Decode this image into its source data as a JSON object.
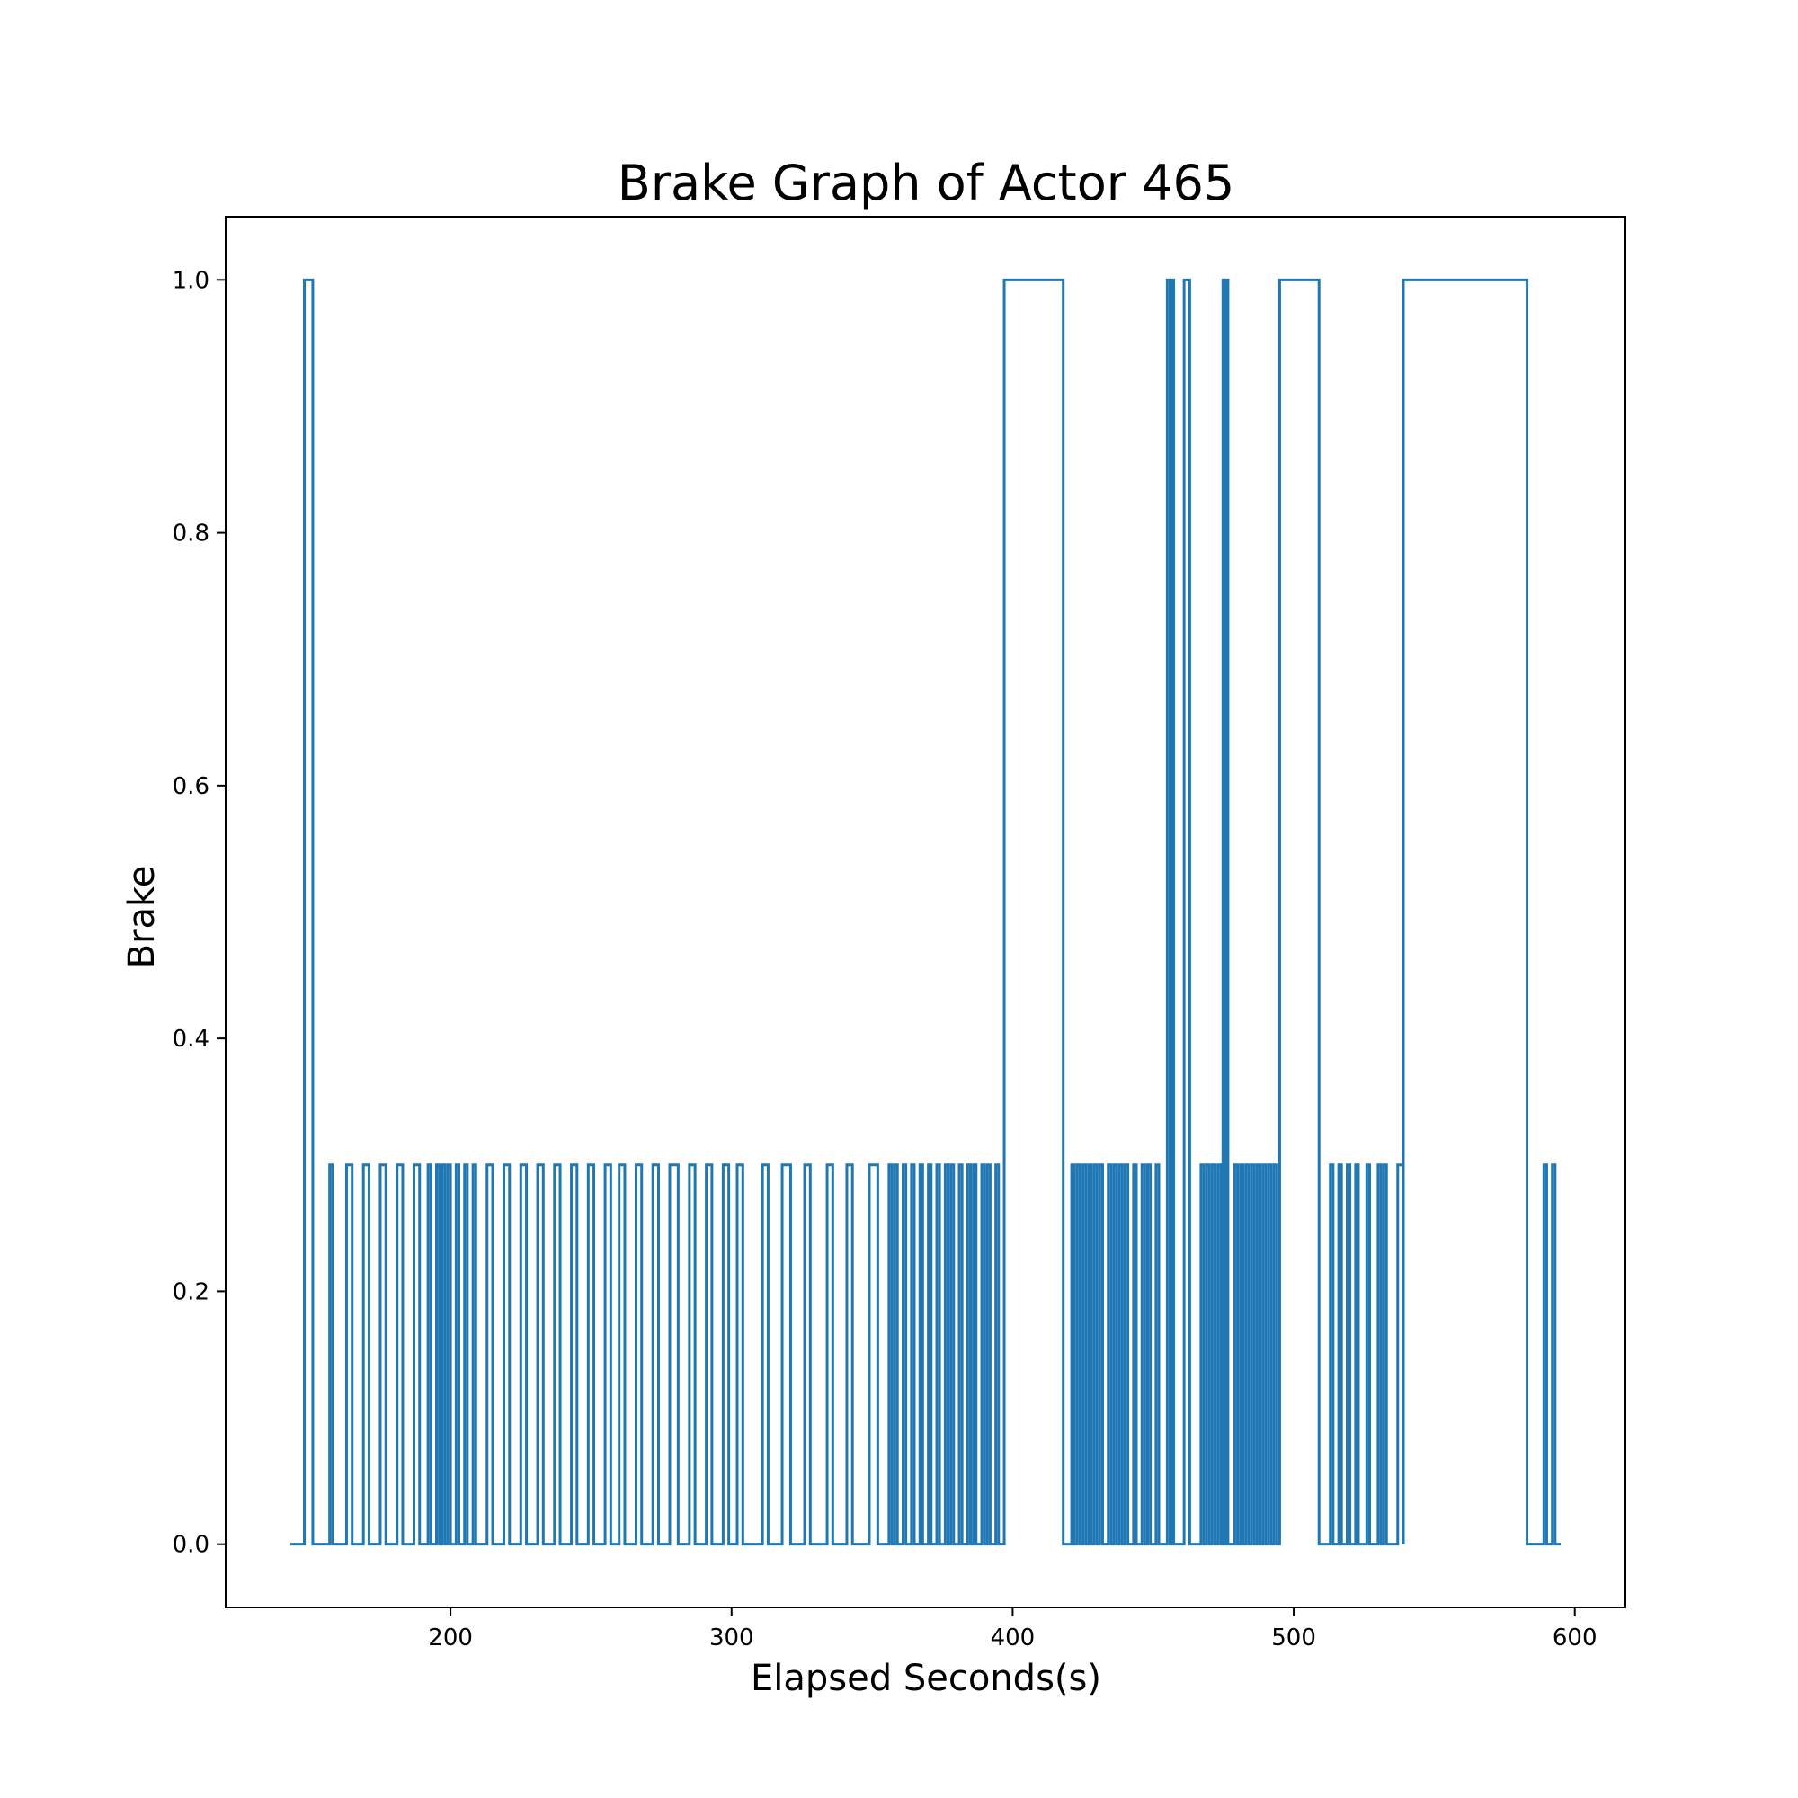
{
  "chart_data": {
    "type": "line",
    "step": true,
    "title": "Brake Graph of Actor 465",
    "xlabel": "Elapsed Seconds(s)",
    "ylabel": "Brake",
    "xlim": [
      120,
      618
    ],
    "ylim": [
      -0.05,
      1.05
    ],
    "xticks": [
      200,
      300,
      400,
      500,
      600
    ],
    "yticks": [
      0.0,
      0.2,
      0.4,
      0.6,
      0.8,
      1.0
    ],
    "xtick_labels": [
      "200",
      "300",
      "400",
      "500",
      "600"
    ],
    "ytick_labels": [
      "0.0",
      "0.2",
      "0.4",
      "0.6",
      "0.8",
      "1.0"
    ],
    "grid": false,
    "series": [
      {
        "name": "brake",
        "color": "#1f77b4",
        "start_x": 143,
        "end_x": 595,
        "base_value": 0,
        "pulses": [
          [
            148,
            151,
            1.0
          ],
          [
            157,
            158,
            0.3
          ],
          [
            163,
            165,
            0.3
          ],
          [
            169,
            171,
            0.3
          ],
          [
            175,
            177,
            0.3
          ],
          [
            181,
            183,
            0.3
          ],
          [
            187,
            189,
            0.3
          ],
          [
            192,
            193,
            0.3
          ],
          [
            195,
            196,
            0.3
          ],
          [
            197,
            198,
            0.3
          ],
          [
            199,
            200,
            0.3
          ],
          [
            202,
            203,
            0.3
          ],
          [
            205,
            206,
            0.3
          ],
          [
            208,
            209,
            0.3
          ],
          [
            213,
            215,
            0.3
          ],
          [
            219,
            221,
            0.3
          ],
          [
            225,
            227,
            0.3
          ],
          [
            231,
            233,
            0.3
          ],
          [
            237,
            239,
            0.3
          ],
          [
            243,
            245,
            0.3
          ],
          [
            249,
            251,
            0.3
          ],
          [
            255,
            257,
            0.3
          ],
          [
            260,
            262,
            0.3
          ],
          [
            266,
            268,
            0.3
          ],
          [
            272,
            274,
            0.3
          ],
          [
            278,
            281,
            0.3
          ],
          [
            285,
            287,
            0.3
          ],
          [
            291,
            293,
            0.3
          ],
          [
            297,
            299,
            0.3
          ],
          [
            302,
            304,
            0.3
          ],
          [
            311,
            313,
            0.3
          ],
          [
            318,
            321,
            0.3
          ],
          [
            326,
            328,
            0.3
          ],
          [
            334,
            336,
            0.3
          ],
          [
            341,
            343,
            0.3
          ],
          [
            349,
            352,
            0.3
          ],
          [
            356,
            357,
            0.3
          ],
          [
            358,
            359,
            0.3
          ],
          [
            361,
            362,
            0.3
          ],
          [
            364,
            365,
            0.3
          ],
          [
            367,
            368,
            0.3
          ],
          [
            370,
            371,
            0.3
          ],
          [
            373,
            374,
            0.3
          ],
          [
            376,
            377,
            0.3
          ],
          [
            378,
            379,
            0.3
          ],
          [
            381,
            382,
            0.3
          ],
          [
            384,
            385,
            0.3
          ],
          [
            386,
            387,
            0.3
          ],
          [
            389,
            390,
            0.3
          ],
          [
            391,
            392,
            0.3
          ],
          [
            394,
            395,
            0.3
          ],
          [
            397,
            418,
            1.0
          ],
          [
            421,
            422,
            0.3
          ],
          [
            423,
            424,
            0.3
          ],
          [
            425,
            426,
            0.3
          ],
          [
            427,
            428,
            0.3
          ],
          [
            429,
            430,
            0.3
          ],
          [
            431,
            432,
            0.3
          ],
          [
            434,
            435,
            0.3
          ],
          [
            436,
            437,
            0.3
          ],
          [
            438,
            439,
            0.3
          ],
          [
            440,
            441,
            0.3
          ],
          [
            443,
            444,
            0.3
          ],
          [
            446,
            447,
            0.3
          ],
          [
            448,
            449,
            0.3
          ],
          [
            451,
            452,
            0.3
          ],
          [
            455,
            456,
            1.0
          ],
          [
            456.5,
            457.3,
            1.0
          ],
          [
            461,
            463,
            1.0
          ],
          [
            467,
            468,
            0.3
          ],
          [
            469,
            470,
            0.3
          ],
          [
            471,
            472,
            0.3
          ],
          [
            473,
            474,
            0.3
          ],
          [
            474.8,
            475.6,
            1.0
          ],
          [
            475.8,
            476.6,
            1.0
          ],
          [
            479,
            480,
            0.3
          ],
          [
            481,
            482,
            0.3
          ],
          [
            483,
            484,
            0.3
          ],
          [
            485,
            486,
            0.3
          ],
          [
            487,
            488,
            0.3
          ],
          [
            489,
            490,
            0.3
          ],
          [
            491,
            492,
            0.3
          ],
          [
            493,
            494,
            0.3
          ],
          [
            495,
            509,
            1.0
          ],
          [
            513,
            514,
            0.3
          ],
          [
            516,
            517,
            0.3
          ],
          [
            519,
            520,
            0.3
          ],
          [
            522,
            523,
            0.3
          ],
          [
            526,
            527,
            0.3
          ],
          [
            530,
            531,
            0.3
          ],
          [
            532,
            533,
            0.3
          ],
          [
            537,
            539,
            0.3
          ],
          [
            539,
            583,
            1.0
          ],
          [
            589,
            590,
            0.3
          ],
          [
            592,
            593,
            0.3
          ]
        ]
      }
    ]
  }
}
